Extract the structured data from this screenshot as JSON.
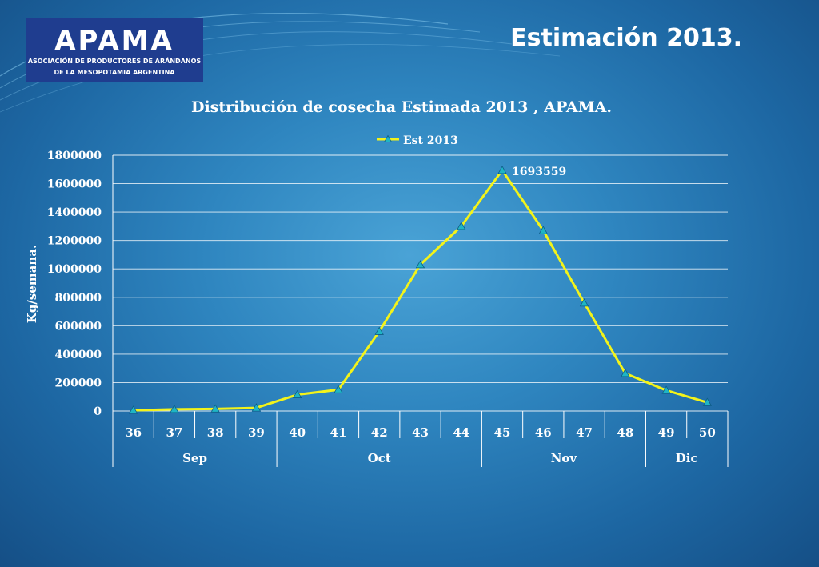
{
  "slide": {
    "title": "Estimación 2013.",
    "logo": {
      "mark": "APAMA",
      "line1": "ASOCIACIÓN DE PRODUCTORES DE ARÁNDANOS",
      "line2": "DE LA MESOPOTAMIA ARGENTINA"
    }
  },
  "colors": {
    "line": "#f3f31a",
    "marker": "#1fb5c5",
    "text": "#ffffff",
    "grid": "#ffffff"
  },
  "chart_data": {
    "type": "line",
    "title": "Distribución de cosecha Estimada 2013 , APAMA.",
    "xlabel": "",
    "ylabel": "Kg/semana.",
    "ylim": [
      0,
      1800000
    ],
    "yticks": [
      0,
      200000,
      400000,
      600000,
      800000,
      1000000,
      1200000,
      1400000,
      1600000,
      1800000
    ],
    "grid": true,
    "legend_position": "top",
    "categories": [
      "36",
      "37",
      "38",
      "39",
      "40",
      "41",
      "42",
      "43",
      "44",
      "45",
      "46",
      "47",
      "48",
      "49",
      "50"
    ],
    "groups": [
      {
        "label": "Sep",
        "count": 4
      },
      {
        "label": "Oct",
        "count": 5
      },
      {
        "label": "Nov",
        "count": 4
      },
      {
        "label": "Dic",
        "count": 2
      }
    ],
    "series": [
      {
        "name": "Est 2013",
        "values": [
          5000,
          12000,
          15000,
          22000,
          115000,
          150000,
          560000,
          1030000,
          1300000,
          1693559,
          1270000,
          760000,
          265000,
          145000,
          60000
        ]
      }
    ],
    "annotations": [
      {
        "index": 9,
        "text": "1693559"
      }
    ]
  }
}
